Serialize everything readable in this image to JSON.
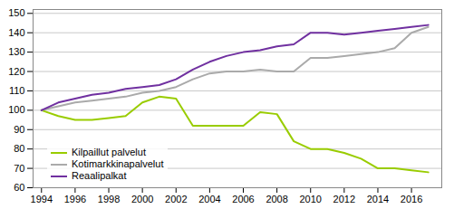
{
  "chart_data": {
    "type": "line",
    "x": [
      1994,
      1995,
      1996,
      1997,
      1998,
      1999,
      2000,
      2001,
      2002,
      2003,
      2004,
      2005,
      2006,
      2007,
      2008,
      2009,
      2010,
      2011,
      2012,
      2013,
      2014,
      2015,
      2016,
      2017
    ],
    "series": [
      {
        "name": "Kilpaillut palvelut",
        "color": "#99cc00",
        "values": [
          100,
          97,
          95,
          95,
          96,
          97,
          104,
          107,
          106,
          92,
          92,
          92,
          92,
          99,
          98,
          84,
          80,
          80,
          78,
          75,
          70,
          70,
          69,
          68
        ]
      },
      {
        "name": "Kotimarkkinapalvelut",
        "color": "#aaaaaa",
        "values": [
          100,
          102,
          104,
          105,
          106,
          107,
          109,
          110,
          112,
          116,
          119,
          120,
          120,
          121,
          120,
          120,
          127,
          127,
          128,
          129,
          130,
          132,
          140,
          143
        ]
      },
      {
        "name": "Reaalipalkat",
        "color": "#7030a0",
        "values": [
          100,
          104,
          106,
          108,
          109,
          111,
          112,
          113,
          116,
          121,
          125,
          128,
          130,
          131,
          133,
          134,
          140,
          140,
          139,
          140,
          141,
          142,
          143,
          144
        ]
      }
    ],
    "xlim": [
      1993.5,
      2017.8
    ],
    "xticks": [
      1994,
      1996,
      1998,
      2000,
      2002,
      2004,
      2006,
      2008,
      2010,
      2012,
      2014,
      2016
    ],
    "ylim": [
      60,
      152
    ],
    "yticks": [
      60,
      70,
      80,
      90,
      100,
      110,
      120,
      130,
      140,
      150
    ],
    "grid": "y",
    "legend": "lower left"
  }
}
